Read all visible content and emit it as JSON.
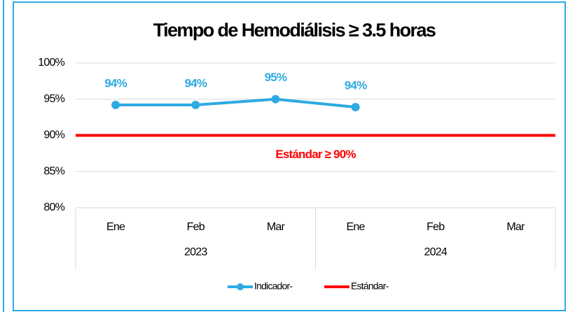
{
  "chart_data": {
    "type": "line",
    "title": "Tiempo de Hemodiálisis  ≥ 3.5 horas",
    "category_groups": [
      {
        "name": "2023",
        "categories": [
          "Ene",
          "Feb",
          "Mar"
        ]
      },
      {
        "name": "2024",
        "categories": [
          "Ene",
          "Feb",
          "Mar"
        ]
      }
    ],
    "series": [
      {
        "name": "Indicador-",
        "color": "#2eaae1",
        "values": [
          94.2,
          94.2,
          95,
          93.9,
          null,
          null
        ],
        "value_labels": [
          "94%",
          "94%",
          "95%",
          "94%",
          null,
          null
        ]
      },
      {
        "name": "Estándar-",
        "color": "#ff0000",
        "values": [
          90,
          90,
          90,
          90,
          90,
          90
        ]
      }
    ],
    "annotation": "Estándar ≥ 90%",
    "ylim": [
      80,
      100
    ],
    "yticks": [
      {
        "value": 80,
        "label": "80%"
      },
      {
        "value": 85,
        "label": "85%"
      },
      {
        "value": 90,
        "label": "90%"
      },
      {
        "value": 95,
        "label": "95%"
      },
      {
        "value": 100,
        "label": "100%"
      }
    ],
    "grid": true,
    "legend": "bottom"
  }
}
